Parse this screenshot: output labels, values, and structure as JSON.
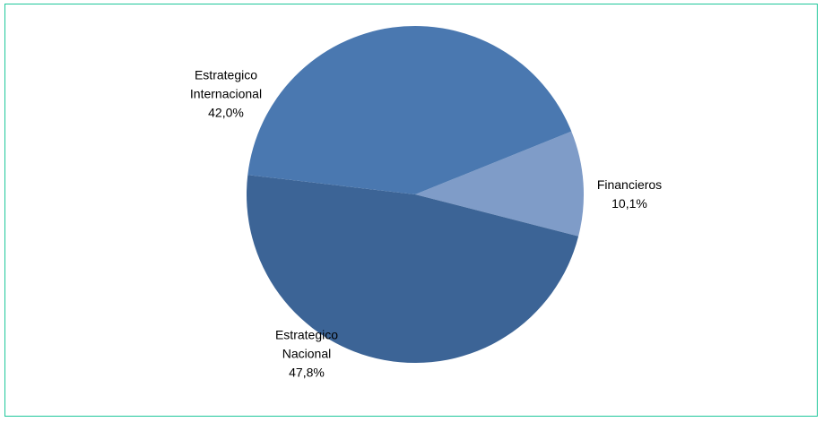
{
  "chart_data": {
    "type": "pie",
    "title": "",
    "slices": [
      {
        "name_lines": [
          "Financieros"
        ],
        "value": 10.1,
        "value_label": "10,1%",
        "color": "#7f9cc8"
      },
      {
        "name_lines": [
          "Estrategico",
          "Nacional"
        ],
        "value": 47.8,
        "value_label": "47,8%",
        "color": "#3c6496"
      },
      {
        "name_lines": [
          "Estrategico",
          "Internacional"
        ],
        "value": 42.0,
        "value_label": "42,0%",
        "color": "#4a78b0"
      }
    ],
    "legend": "none"
  },
  "frame": {
    "border_color": "#1ec79a"
  }
}
